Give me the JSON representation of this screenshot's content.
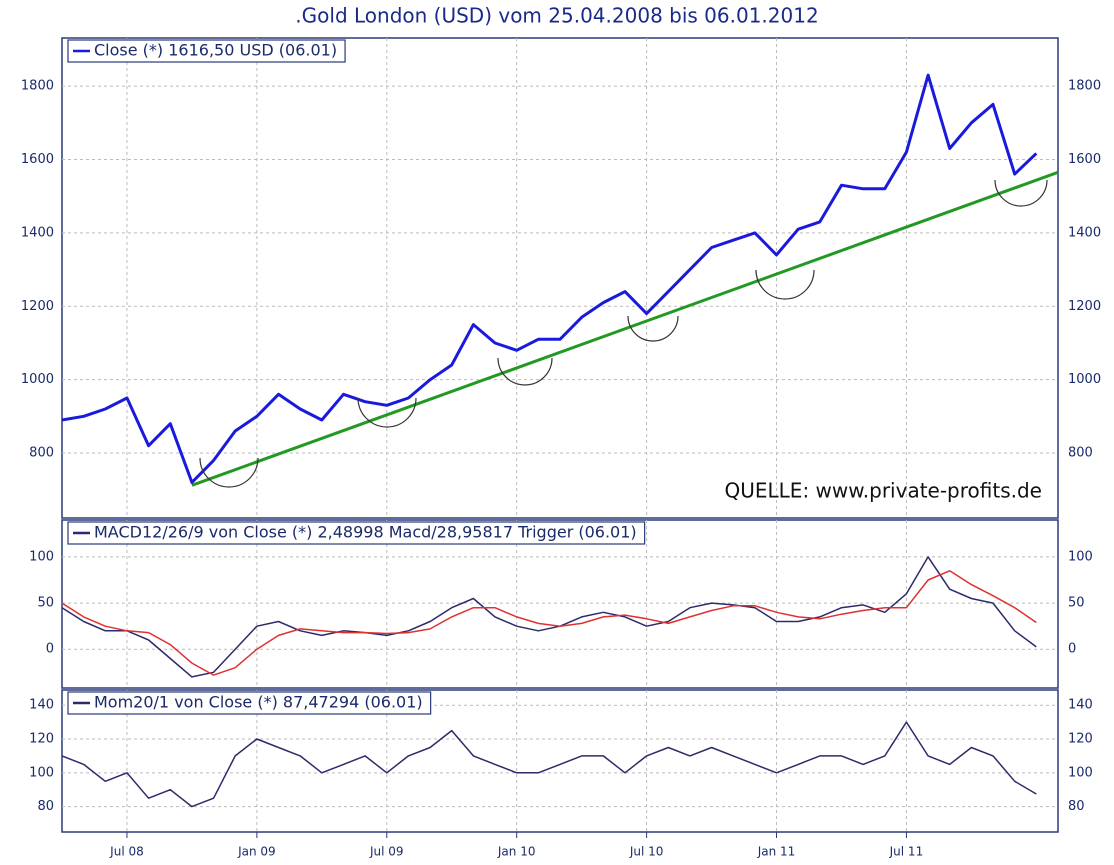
{
  "chart_data": [
    {
      "type": "line",
      "title": ".Gold London (USD) vom 25.04.2008 bis 06.01.2012",
      "annotation": "QUELLE: www.private-profits.de",
      "x": [
        "2008-04",
        "2008-05",
        "2008-06",
        "2008-07",
        "2008-08",
        "2008-09",
        "2008-10",
        "2008-11",
        "2008-12",
        "2009-01",
        "2009-02",
        "2009-03",
        "2009-04",
        "2009-05",
        "2009-06",
        "2009-07",
        "2009-08",
        "2009-09",
        "2009-10",
        "2009-11",
        "2009-12",
        "2010-01",
        "2010-02",
        "2010-03",
        "2010-04",
        "2010-05",
        "2010-06",
        "2010-07",
        "2010-08",
        "2010-09",
        "2010-10",
        "2010-11",
        "2010-12",
        "2011-01",
        "2011-02",
        "2011-03",
        "2011-04",
        "2011-05",
        "2011-06",
        "2011-07",
        "2011-08",
        "2011-09",
        "2011-10",
        "2011-11",
        "2011-12",
        "2012-01"
      ],
      "xlim": [
        "2008-04",
        "2012-02"
      ],
      "series": [
        {
          "name": "Close (*) 1616,50 USD (06.01)",
          "color": "#1a1adc",
          "values": [
            890,
            900,
            920,
            950,
            820,
            880,
            720,
            780,
            860,
            900,
            960,
            920,
            890,
            960,
            940,
            930,
            950,
            1000,
            1040,
            1150,
            1100,
            1080,
            1110,
            1110,
            1170,
            1210,
            1240,
            1180,
            1240,
            1300,
            1360,
            1380,
            1400,
            1340,
            1410,
            1430,
            1530,
            1520,
            1520,
            1620,
            1830,
            1630,
            1700,
            1750,
            1560,
            1616.5
          ]
        }
      ],
      "trendline": {
        "color": "#229922",
        "x": [
          "2008-10",
          "2012-02"
        ],
        "values": [
          712,
          1565
        ]
      },
      "ylim": [
        623,
        1931
      ],
      "yticks": [
        800,
        1000,
        1200,
        1400,
        1600,
        1800
      ],
      "grid": true
    },
    {
      "type": "line",
      "x": [
        "2008-04",
        "2008-05",
        "2008-06",
        "2008-07",
        "2008-08",
        "2008-09",
        "2008-10",
        "2008-11",
        "2008-12",
        "2009-01",
        "2009-02",
        "2009-03",
        "2009-04",
        "2009-05",
        "2009-06",
        "2009-07",
        "2009-08",
        "2009-09",
        "2009-10",
        "2009-11",
        "2009-12",
        "2010-01",
        "2010-02",
        "2010-03",
        "2010-04",
        "2010-05",
        "2010-06",
        "2010-07",
        "2010-08",
        "2010-09",
        "2010-10",
        "2010-11",
        "2010-12",
        "2011-01",
        "2011-02",
        "2011-03",
        "2011-04",
        "2011-05",
        "2011-06",
        "2011-07",
        "2011-08",
        "2011-09",
        "2011-10",
        "2011-11",
        "2011-12",
        "2012-01"
      ],
      "xlim": [
        "2008-04",
        "2012-02"
      ],
      "series": [
        {
          "name": "MACD12/26/9 von Close (*) 2,48998 Macd/28,95817 Trigger (06.01)",
          "color": "#2b2b6b",
          "values": [
            45,
            30,
            20,
            20,
            10,
            -10,
            -30,
            -25,
            0,
            25,
            30,
            20,
            15,
            20,
            18,
            15,
            20,
            30,
            45,
            55,
            35,
            25,
            20,
            25,
            35,
            40,
            35,
            25,
            30,
            45,
            50,
            48,
            45,
            30,
            30,
            35,
            45,
            48,
            40,
            60,
            100,
            65,
            55,
            50,
            20,
            2.49
          ]
        },
        {
          "color": "#e03030",
          "values": [
            50,
            35,
            25,
            20,
            18,
            5,
            -15,
            -28,
            -20,
            0,
            15,
            22,
            20,
            18,
            18,
            17,
            18,
            22,
            35,
            45,
            45,
            35,
            28,
            25,
            28,
            35,
            37,
            33,
            28,
            35,
            42,
            47,
            47,
            40,
            35,
            33,
            38,
            42,
            45,
            45,
            75,
            85,
            70,
            58,
            45,
            28.96
          ]
        }
      ],
      "ylim": [
        -42,
        140
      ],
      "yticks": [
        0,
        50,
        100
      ],
      "grid": true
    },
    {
      "type": "line",
      "x": [
        "2008-04",
        "2008-05",
        "2008-06",
        "2008-07",
        "2008-08",
        "2008-09",
        "2008-10",
        "2008-11",
        "2008-12",
        "2009-01",
        "2009-02",
        "2009-03",
        "2009-04",
        "2009-05",
        "2009-06",
        "2009-07",
        "2009-08",
        "2009-09",
        "2009-10",
        "2009-11",
        "2009-12",
        "2010-01",
        "2010-02",
        "2010-03",
        "2010-04",
        "2010-05",
        "2010-06",
        "2010-07",
        "2010-08",
        "2010-09",
        "2010-10",
        "2010-11",
        "2010-12",
        "2011-01",
        "2011-02",
        "2011-03",
        "2011-04",
        "2011-05",
        "2011-06",
        "2011-07",
        "2011-08",
        "2011-09",
        "2011-10",
        "2011-11",
        "2011-12",
        "2012-01"
      ],
      "xlim": [
        "2008-04",
        "2012-02"
      ],
      "series": [
        {
          "name": "Mom20/1 von Close (*) 87,47294 (06.01)",
          "color": "#2b2b6b",
          "values": [
            110,
            105,
            95,
            100,
            85,
            90,
            80,
            85,
            110,
            120,
            115,
            110,
            100,
            105,
            110,
            100,
            110,
            115,
            125,
            110,
            105,
            100,
            100,
            105,
            110,
            110,
            100,
            110,
            115,
            110,
            115,
            110,
            105,
            100,
            105,
            110,
            110,
            105,
            110,
            130,
            110,
            105,
            115,
            110,
            95,
            87.47
          ]
        }
      ],
      "ylim": [
        65,
        149
      ],
      "yticks": [
        80,
        100,
        120,
        140
      ],
      "grid": true,
      "xticks": [
        {
          "value": "2008-07",
          "label": "Jul 08"
        },
        {
          "value": "2009-01",
          "label": "Jan 09"
        },
        {
          "value": "2009-07",
          "label": "Jul 09"
        },
        {
          "value": "2010-01",
          "label": "Jan 10"
        },
        {
          "value": "2010-07",
          "label": "Jul 10"
        },
        {
          "value": "2011-01",
          "label": "Jan 11"
        },
        {
          "value": "2011-07",
          "label": "Jul 11"
        }
      ]
    }
  ]
}
